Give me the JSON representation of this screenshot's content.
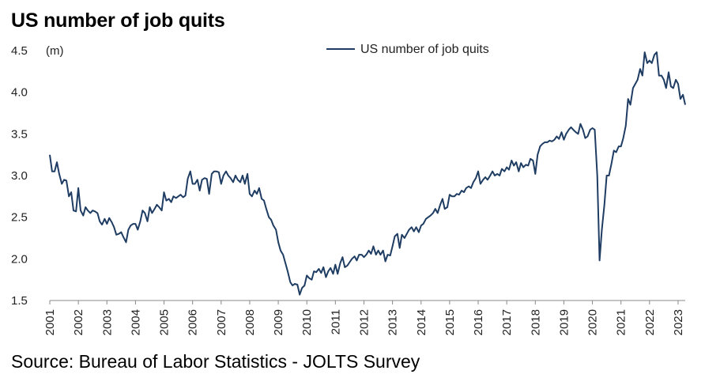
{
  "header": {
    "title": "US number of job quits"
  },
  "footer": {
    "source": "Source: Bureau of Labor Statistics - JOLTS Survey"
  },
  "colors": {
    "series": "#1f3d63",
    "axis": "#888888"
  },
  "chart_data": {
    "type": "line",
    "title": "US number of job quits",
    "xlabel": "",
    "ylabel": "(m)",
    "ylim": [
      1.5,
      4.5
    ],
    "yticks": [
      "1.5",
      "2.0",
      "2.5",
      "3.0",
      "3.5",
      "4.0",
      "4.5"
    ],
    "xlim": [
      2001,
      2023.25
    ],
    "xticks": [
      "2001",
      "2002",
      "2003",
      "2004",
      "2005",
      "2006",
      "2007",
      "2008",
      "2009",
      "2010",
      "2011",
      "2012",
      "2013",
      "2014",
      "2015",
      "2016",
      "2017",
      "2018",
      "2019",
      "2020",
      "2021",
      "2022",
      "2023"
    ],
    "grid": false,
    "legend_position": "top-center",
    "series": [
      {
        "name": "US number of job quits",
        "points": [
          [
            2001.0,
            3.25
          ],
          [
            2001.08,
            3.05
          ],
          [
            2001.17,
            3.05
          ],
          [
            2001.25,
            3.16
          ],
          [
            2001.33,
            3.02
          ],
          [
            2001.42,
            2.9
          ],
          [
            2001.5,
            2.95
          ],
          [
            2001.58,
            2.94
          ],
          [
            2001.67,
            2.75
          ],
          [
            2001.75,
            2.8
          ],
          [
            2001.83,
            2.58
          ],
          [
            2001.92,
            2.57
          ],
          [
            2002.0,
            2.85
          ],
          [
            2002.08,
            2.58
          ],
          [
            2002.17,
            2.52
          ],
          [
            2002.25,
            2.62
          ],
          [
            2002.33,
            2.58
          ],
          [
            2002.42,
            2.55
          ],
          [
            2002.5,
            2.58
          ],
          [
            2002.58,
            2.57
          ],
          [
            2002.67,
            2.55
          ],
          [
            2002.75,
            2.45
          ],
          [
            2002.83,
            2.41
          ],
          [
            2002.92,
            2.48
          ],
          [
            2003.0,
            2.42
          ],
          [
            2003.08,
            2.49
          ],
          [
            2003.17,
            2.44
          ],
          [
            2003.25,
            2.38
          ],
          [
            2003.33,
            2.29
          ],
          [
            2003.42,
            2.3
          ],
          [
            2003.5,
            2.32
          ],
          [
            2003.58,
            2.26
          ],
          [
            2003.67,
            2.2
          ],
          [
            2003.75,
            2.35
          ],
          [
            2003.83,
            2.4
          ],
          [
            2003.92,
            2.42
          ],
          [
            2004.0,
            2.42
          ],
          [
            2004.08,
            2.35
          ],
          [
            2004.17,
            2.45
          ],
          [
            2004.25,
            2.58
          ],
          [
            2004.33,
            2.55
          ],
          [
            2004.42,
            2.45
          ],
          [
            2004.5,
            2.62
          ],
          [
            2004.58,
            2.55
          ],
          [
            2004.67,
            2.6
          ],
          [
            2004.75,
            2.65
          ],
          [
            2004.83,
            2.62
          ],
          [
            2004.92,
            2.58
          ],
          [
            2005.0,
            2.8
          ],
          [
            2005.08,
            2.7
          ],
          [
            2005.17,
            2.72
          ],
          [
            2005.25,
            2.68
          ],
          [
            2005.33,
            2.75
          ],
          [
            2005.42,
            2.73
          ],
          [
            2005.5,
            2.75
          ],
          [
            2005.58,
            2.77
          ],
          [
            2005.67,
            2.74
          ],
          [
            2005.75,
            2.76
          ],
          [
            2005.83,
            2.96
          ],
          [
            2005.92,
            3.05
          ],
          [
            2006.0,
            2.9
          ],
          [
            2006.08,
            2.9
          ],
          [
            2006.17,
            2.95
          ],
          [
            2006.25,
            2.82
          ],
          [
            2006.33,
            2.95
          ],
          [
            2006.42,
            2.97
          ],
          [
            2006.5,
            2.96
          ],
          [
            2006.58,
            2.78
          ],
          [
            2006.67,
            3.02
          ],
          [
            2006.75,
            3.05
          ],
          [
            2006.83,
            3.05
          ],
          [
            2006.92,
            3.04
          ],
          [
            2007.0,
            2.9
          ],
          [
            2007.08,
            3.0
          ],
          [
            2007.17,
            3.05
          ],
          [
            2007.25,
            3.0
          ],
          [
            2007.33,
            2.97
          ],
          [
            2007.42,
            2.92
          ],
          [
            2007.5,
            3.0
          ],
          [
            2007.58,
            2.95
          ],
          [
            2007.67,
            2.92
          ],
          [
            2007.75,
            3.0
          ],
          [
            2007.83,
            2.9
          ],
          [
            2007.92,
            3.02
          ],
          [
            2008.0,
            2.78
          ],
          [
            2008.08,
            2.75
          ],
          [
            2008.17,
            2.82
          ],
          [
            2008.25,
            2.78
          ],
          [
            2008.33,
            2.85
          ],
          [
            2008.42,
            2.72
          ],
          [
            2008.5,
            2.7
          ],
          [
            2008.58,
            2.6
          ],
          [
            2008.67,
            2.5
          ],
          [
            2008.75,
            2.47
          ],
          [
            2008.83,
            2.4
          ],
          [
            2008.92,
            2.35
          ],
          [
            2009.0,
            2.2
          ],
          [
            2009.08,
            2.1
          ],
          [
            2009.17,
            2.05
          ],
          [
            2009.25,
            1.95
          ],
          [
            2009.33,
            1.85
          ],
          [
            2009.42,
            1.72
          ],
          [
            2009.5,
            1.68
          ],
          [
            2009.58,
            1.7
          ],
          [
            2009.67,
            1.69
          ],
          [
            2009.75,
            1.57
          ],
          [
            2009.83,
            1.65
          ],
          [
            2009.92,
            1.68
          ],
          [
            2010.0,
            1.8
          ],
          [
            2010.08,
            1.77
          ],
          [
            2010.17,
            1.75
          ],
          [
            2010.25,
            1.85
          ],
          [
            2010.33,
            1.84
          ],
          [
            2010.42,
            1.88
          ],
          [
            2010.5,
            1.83
          ],
          [
            2010.58,
            1.9
          ],
          [
            2010.67,
            1.78
          ],
          [
            2010.75,
            1.85
          ],
          [
            2010.83,
            1.89
          ],
          [
            2010.92,
            1.82
          ],
          [
            2011.0,
            1.93
          ],
          [
            2011.08,
            1.82
          ],
          [
            2011.17,
            1.95
          ],
          [
            2011.25,
            2.02
          ],
          [
            2011.33,
            1.9
          ],
          [
            2011.42,
            1.92
          ],
          [
            2011.5,
            1.96
          ],
          [
            2011.58,
            2.0
          ],
          [
            2011.67,
            2.03
          ],
          [
            2011.75,
            1.98
          ],
          [
            2011.83,
            2.05
          ],
          [
            2011.92,
            2.05
          ],
          [
            2012.0,
            2.02
          ],
          [
            2012.08,
            2.05
          ],
          [
            2012.17,
            2.1
          ],
          [
            2012.25,
            2.06
          ],
          [
            2012.33,
            2.15
          ],
          [
            2012.42,
            2.05
          ],
          [
            2012.5,
            2.1
          ],
          [
            2012.58,
            2.05
          ],
          [
            2012.67,
            2.1
          ],
          [
            2012.75,
            1.97
          ],
          [
            2012.83,
            2.05
          ],
          [
            2012.92,
            2.04
          ],
          [
            2013.0,
            2.15
          ],
          [
            2013.08,
            2.27
          ],
          [
            2013.17,
            2.3
          ],
          [
            2013.25,
            2.13
          ],
          [
            2013.33,
            2.29
          ],
          [
            2013.42,
            2.25
          ],
          [
            2013.5,
            2.3
          ],
          [
            2013.58,
            2.35
          ],
          [
            2013.67,
            2.38
          ],
          [
            2013.75,
            2.33
          ],
          [
            2013.83,
            2.38
          ],
          [
            2013.92,
            2.32
          ],
          [
            2014.0,
            2.4
          ],
          [
            2014.08,
            2.42
          ],
          [
            2014.17,
            2.48
          ],
          [
            2014.25,
            2.5
          ],
          [
            2014.33,
            2.52
          ],
          [
            2014.42,
            2.55
          ],
          [
            2014.5,
            2.6
          ],
          [
            2014.58,
            2.55
          ],
          [
            2014.67,
            2.65
          ],
          [
            2014.75,
            2.72
          ],
          [
            2014.83,
            2.6
          ],
          [
            2014.92,
            2.62
          ],
          [
            2015.0,
            2.77
          ],
          [
            2015.08,
            2.75
          ],
          [
            2015.17,
            2.75
          ],
          [
            2015.25,
            2.78
          ],
          [
            2015.33,
            2.77
          ],
          [
            2015.42,
            2.82
          ],
          [
            2015.5,
            2.8
          ],
          [
            2015.58,
            2.85
          ],
          [
            2015.67,
            2.87
          ],
          [
            2015.75,
            2.85
          ],
          [
            2015.83,
            2.92
          ],
          [
            2015.92,
            2.97
          ],
          [
            2016.0,
            3.05
          ],
          [
            2016.08,
            2.9
          ],
          [
            2016.17,
            2.95
          ],
          [
            2016.25,
            2.98
          ],
          [
            2016.33,
            2.95
          ],
          [
            2016.42,
            3.0
          ],
          [
            2016.5,
            3.05
          ],
          [
            2016.58,
            3.0
          ],
          [
            2016.67,
            3.02
          ],
          [
            2016.75,
            3.0
          ],
          [
            2016.83,
            3.08
          ],
          [
            2016.92,
            3.05
          ],
          [
            2017.0,
            3.1
          ],
          [
            2017.08,
            3.07
          ],
          [
            2017.17,
            3.18
          ],
          [
            2017.25,
            3.12
          ],
          [
            2017.33,
            3.16
          ],
          [
            2017.42,
            3.05
          ],
          [
            2017.5,
            3.15
          ],
          [
            2017.58,
            3.1
          ],
          [
            2017.67,
            3.13
          ],
          [
            2017.75,
            3.12
          ],
          [
            2017.83,
            3.2
          ],
          [
            2017.92,
            3.18
          ],
          [
            2018.0,
            3.02
          ],
          [
            2018.08,
            3.25
          ],
          [
            2018.17,
            3.35
          ],
          [
            2018.25,
            3.38
          ],
          [
            2018.33,
            3.4
          ],
          [
            2018.42,
            3.4
          ],
          [
            2018.5,
            3.42
          ],
          [
            2018.58,
            3.41
          ],
          [
            2018.67,
            3.43
          ],
          [
            2018.75,
            3.47
          ],
          [
            2018.83,
            3.44
          ],
          [
            2018.92,
            3.52
          ],
          [
            2019.0,
            3.43
          ],
          [
            2019.08,
            3.5
          ],
          [
            2019.17,
            3.55
          ],
          [
            2019.25,
            3.58
          ],
          [
            2019.33,
            3.55
          ],
          [
            2019.42,
            3.52
          ],
          [
            2019.5,
            3.5
          ],
          [
            2019.58,
            3.62
          ],
          [
            2019.67,
            3.55
          ],
          [
            2019.75,
            3.45
          ],
          [
            2019.83,
            3.47
          ],
          [
            2019.92,
            3.55
          ],
          [
            2020.0,
            3.57
          ],
          [
            2020.08,
            3.55
          ],
          [
            2020.17,
            3.0
          ],
          [
            2020.25,
            1.98
          ],
          [
            2020.33,
            2.35
          ],
          [
            2020.42,
            2.65
          ],
          [
            2020.5,
            3.0
          ],
          [
            2020.58,
            3.0
          ],
          [
            2020.67,
            3.15
          ],
          [
            2020.75,
            3.3
          ],
          [
            2020.83,
            3.28
          ],
          [
            2020.92,
            3.35
          ],
          [
            2021.0,
            3.35
          ],
          [
            2021.08,
            3.45
          ],
          [
            2021.17,
            3.6
          ],
          [
            2021.25,
            3.92
          ],
          [
            2021.33,
            3.85
          ],
          [
            2021.42,
            4.05
          ],
          [
            2021.5,
            4.1
          ],
          [
            2021.58,
            4.15
          ],
          [
            2021.67,
            4.28
          ],
          [
            2021.75,
            4.2
          ],
          [
            2021.83,
            4.48
          ],
          [
            2021.92,
            4.35
          ],
          [
            2022.0,
            4.38
          ],
          [
            2022.08,
            4.35
          ],
          [
            2022.17,
            4.45
          ],
          [
            2022.25,
            4.48
          ],
          [
            2022.33,
            4.2
          ],
          [
            2022.42,
            4.2
          ],
          [
            2022.5,
            4.15
          ],
          [
            2022.58,
            4.05
          ],
          [
            2022.67,
            4.24
          ],
          [
            2022.75,
            4.07
          ],
          [
            2022.83,
            4.05
          ],
          [
            2022.92,
            4.15
          ],
          [
            2023.0,
            4.1
          ],
          [
            2023.08,
            3.92
          ],
          [
            2023.17,
            3.97
          ],
          [
            2023.25,
            3.85
          ]
        ]
      }
    ]
  }
}
